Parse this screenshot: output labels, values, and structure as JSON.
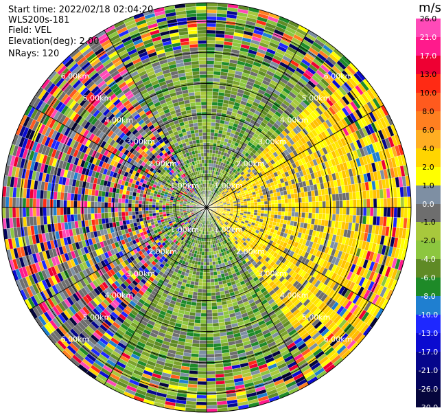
{
  "info": {
    "start_time": "Start time: 2022/02/18 02:04:20",
    "station": "WLS200s-181",
    "field": "Field: VEL",
    "elevation": "Elevation(deg): 2.00",
    "nrays": "NRays: 120"
  },
  "chart_data": {
    "type": "ppi",
    "field": "VEL",
    "units": "m/s",
    "nrays": 120,
    "max_range_km": 6.6,
    "range_rings_km": [
      1.0,
      2.0,
      3.0,
      4.0,
      5.0,
      6.0
    ],
    "ring_labels": [
      "1.00km",
      "2.00km",
      "3.00km",
      "4.00km",
      "5.00km",
      "6.00km"
    ],
    "colorbar": {
      "title": "m/s",
      "labels": [
        "26.0",
        "21.0",
        "17.0",
        "13.0",
        "10.0",
        "8.0",
        "6.0",
        "4.0",
        "2.0",
        "1.0",
        "0.0",
        "-1.0",
        "-2.0",
        "-4.0",
        "-6.0",
        "-8.0",
        "-10.0",
        "-13.0",
        "-17.0",
        "-21.0",
        "-26.0",
        "-30.0"
      ],
      "colors": [
        "#ff4ab8",
        "#ff1a8c",
        "#ee0033",
        "#ff2a14",
        "#ff5a1e",
        "#ff7f20",
        "#ffae22",
        "#ffd500",
        "#ffff00",
        "#7e8fa3",
        "#6e6e6e",
        "#a8c83c",
        "#8cc63f",
        "#5f8a25",
        "#1e8a28",
        "#1f7fd0",
        "#1e28ff",
        "#0b0bd0",
        "#06068c",
        "#04045c",
        "#06063c"
      ]
    },
    "sectors": [
      {
        "az_from": 0,
        "az_to": 45,
        "band": "green"
      },
      {
        "az_from": 45,
        "az_to": 145,
        "band": "yellow"
      },
      {
        "az_from": 145,
        "az_to": 215,
        "band": "green"
      },
      {
        "az_from": 215,
        "az_to": 330,
        "band": "chaotic"
      },
      {
        "az_from": 330,
        "az_to": 360,
        "band": "green"
      }
    ]
  }
}
